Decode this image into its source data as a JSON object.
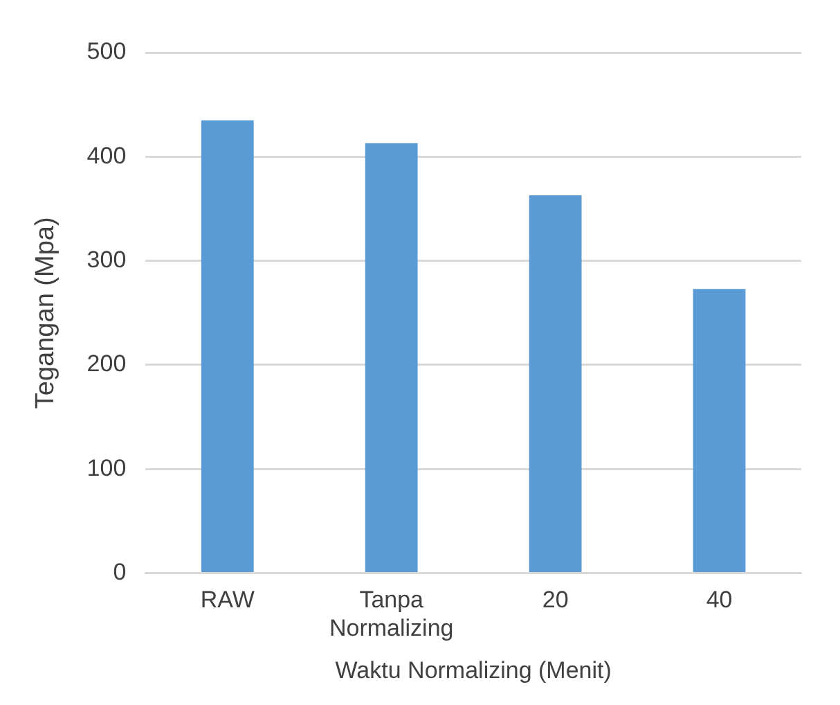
{
  "chart_data": {
    "type": "bar",
    "xlabel": "Waktu Normalizing (Menit)",
    "ylabel": "Tegangan (Mpa)",
    "categories": [
      "RAW",
      "Tanpa Normalizing",
      "20",
      "40"
    ],
    "values": [
      435,
      413,
      363,
      273
    ],
    "color": "#5b9bd5",
    "ylim": [
      0,
      500
    ],
    "yticks": [
      0,
      100,
      200,
      300,
      400,
      500
    ],
    "grid": "y",
    "legend": false
  }
}
